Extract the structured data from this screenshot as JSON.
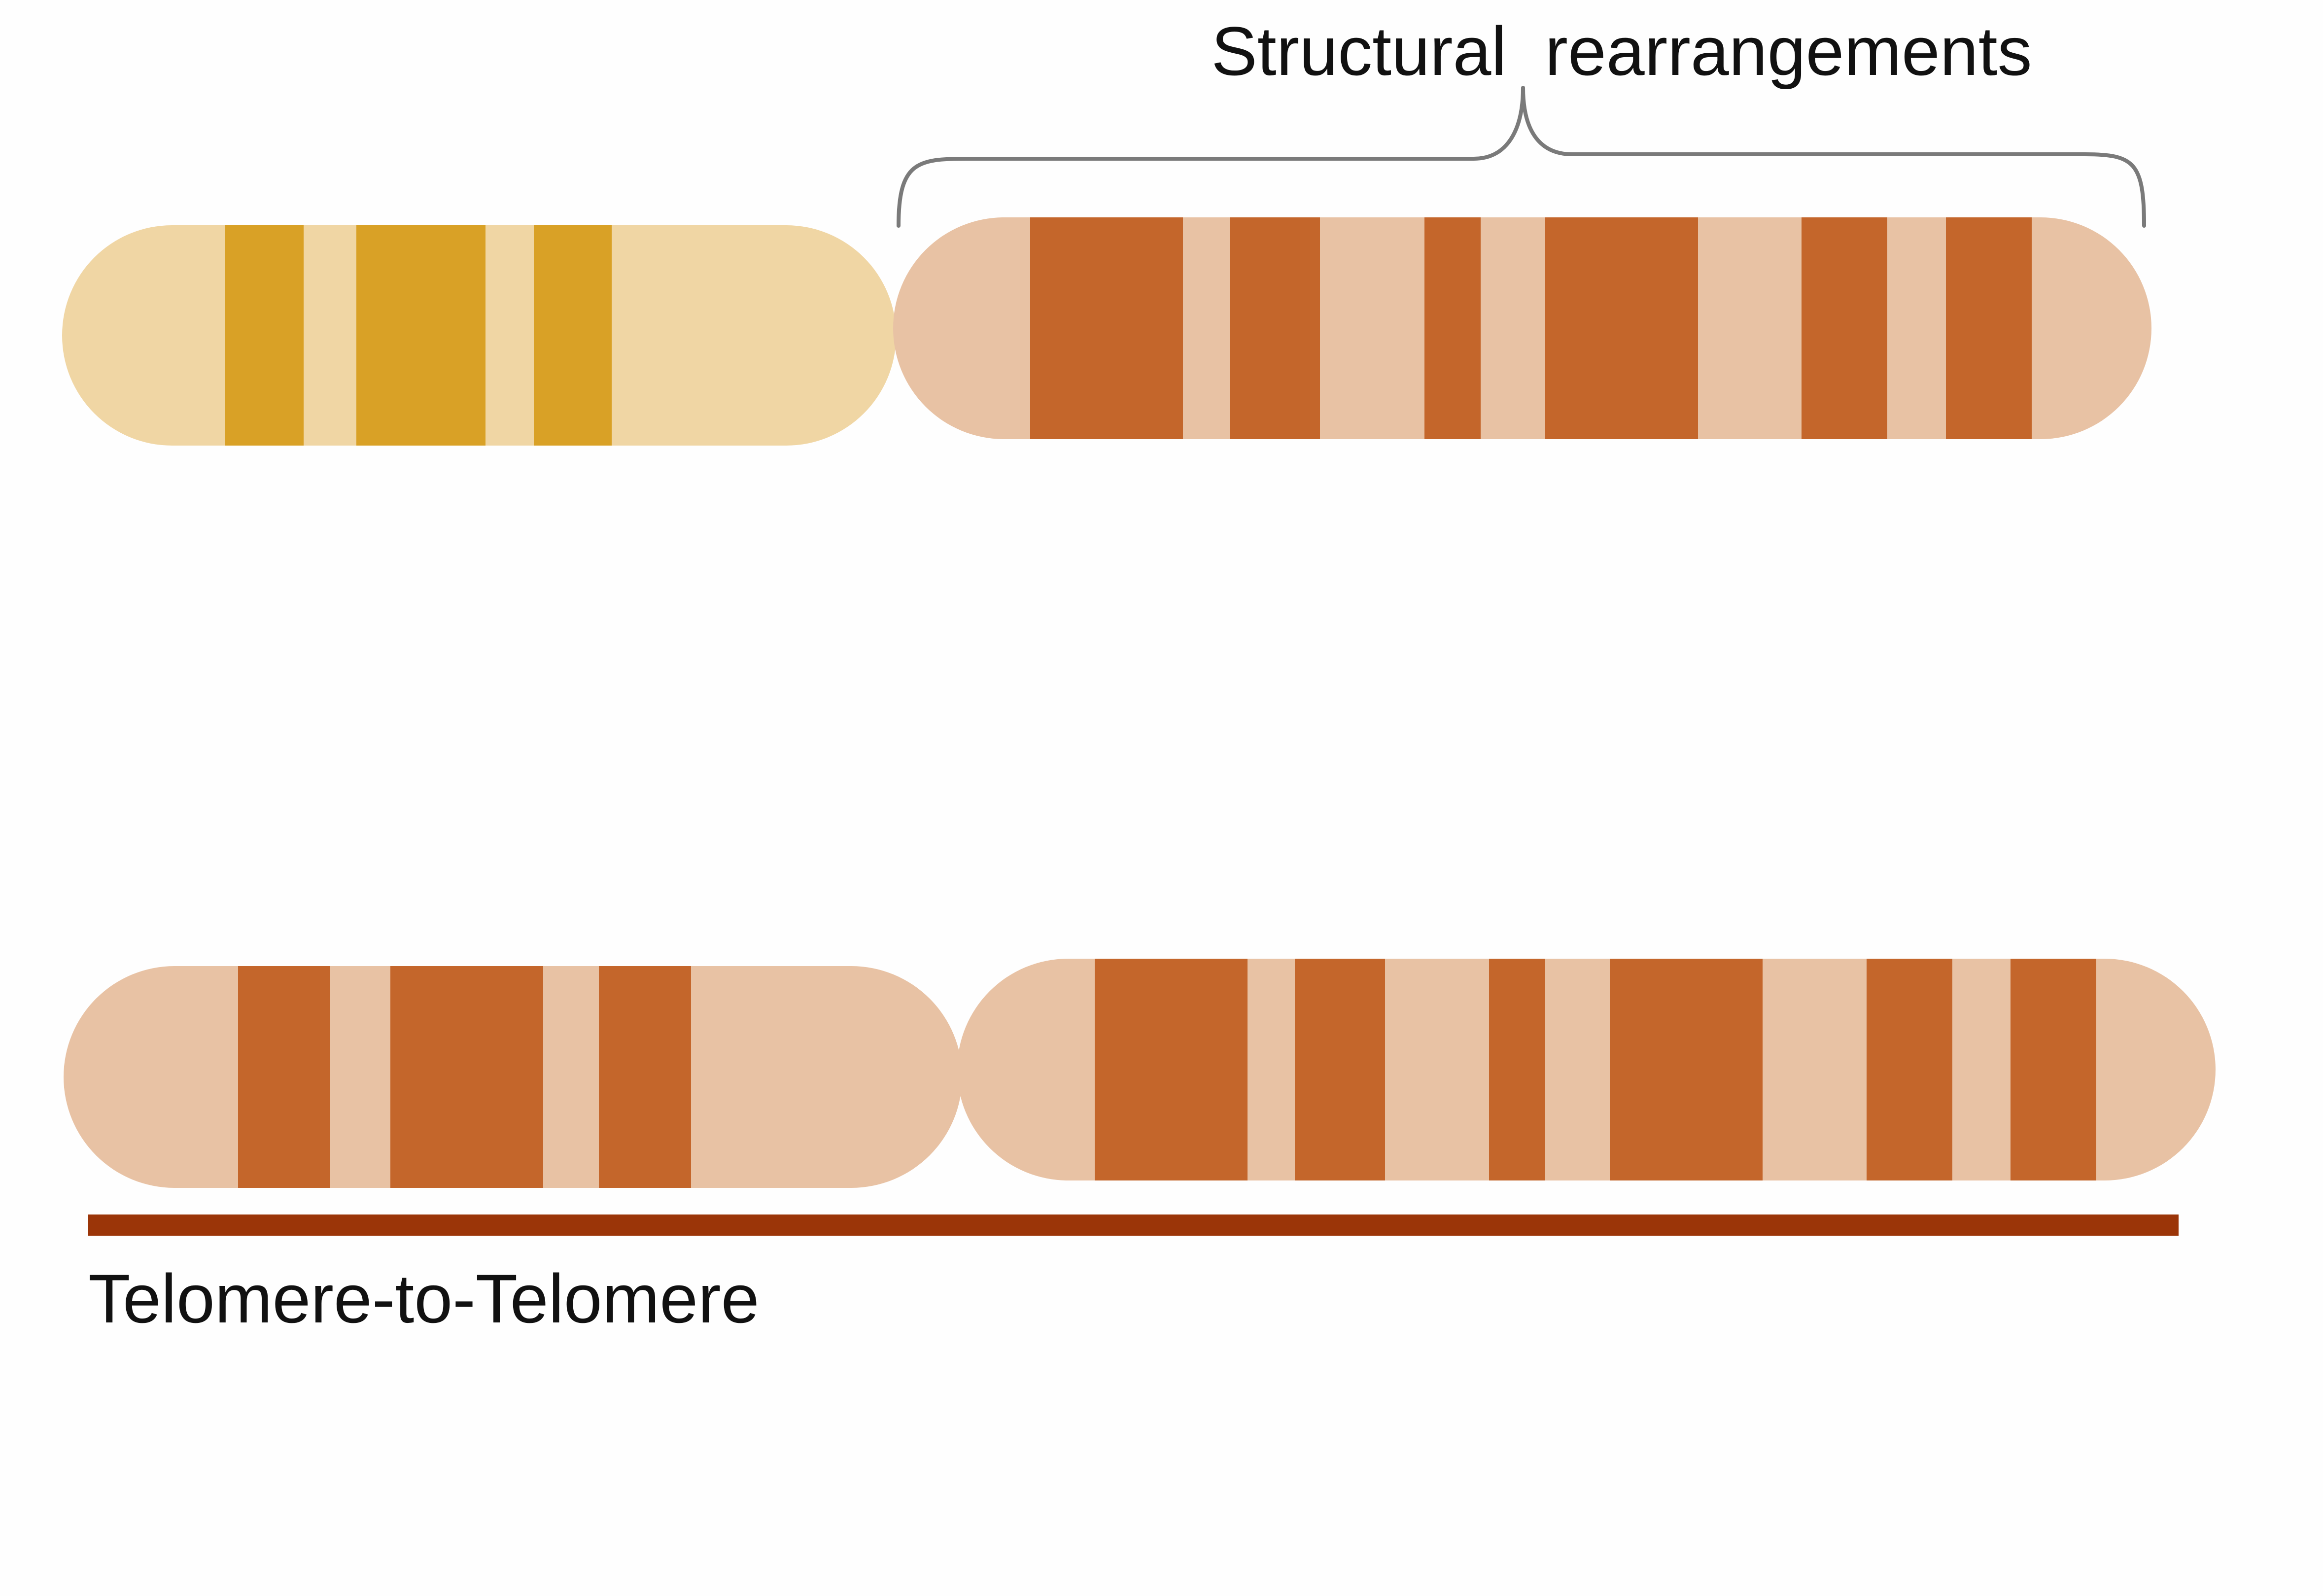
{
  "heading": {
    "label": "Structural  rearrangements",
    "partial_top_text": "",
    "bracket_color": "#7a7a7a"
  },
  "footer": {
    "label": "Telomere-to-Telomere",
    "bar_color": "#9b3508"
  },
  "colors": {
    "yellow_light": "#f0d6a4",
    "yellow_band": "#d9a126",
    "peach_light": "#e8c2a4",
    "orange_band": "#c4662b"
  },
  "chromosomes": [
    {
      "name": "top-left-chromosome",
      "palette": "yellow",
      "band_count": 3
    },
    {
      "name": "top-right-chromosome",
      "palette": "peach",
      "band_count": 6
    },
    {
      "name": "bottom-left-chromosome",
      "palette": "peach",
      "band_count": 3
    },
    {
      "name": "bottom-right-chromosome",
      "palette": "peach",
      "band_count": 6
    }
  ]
}
